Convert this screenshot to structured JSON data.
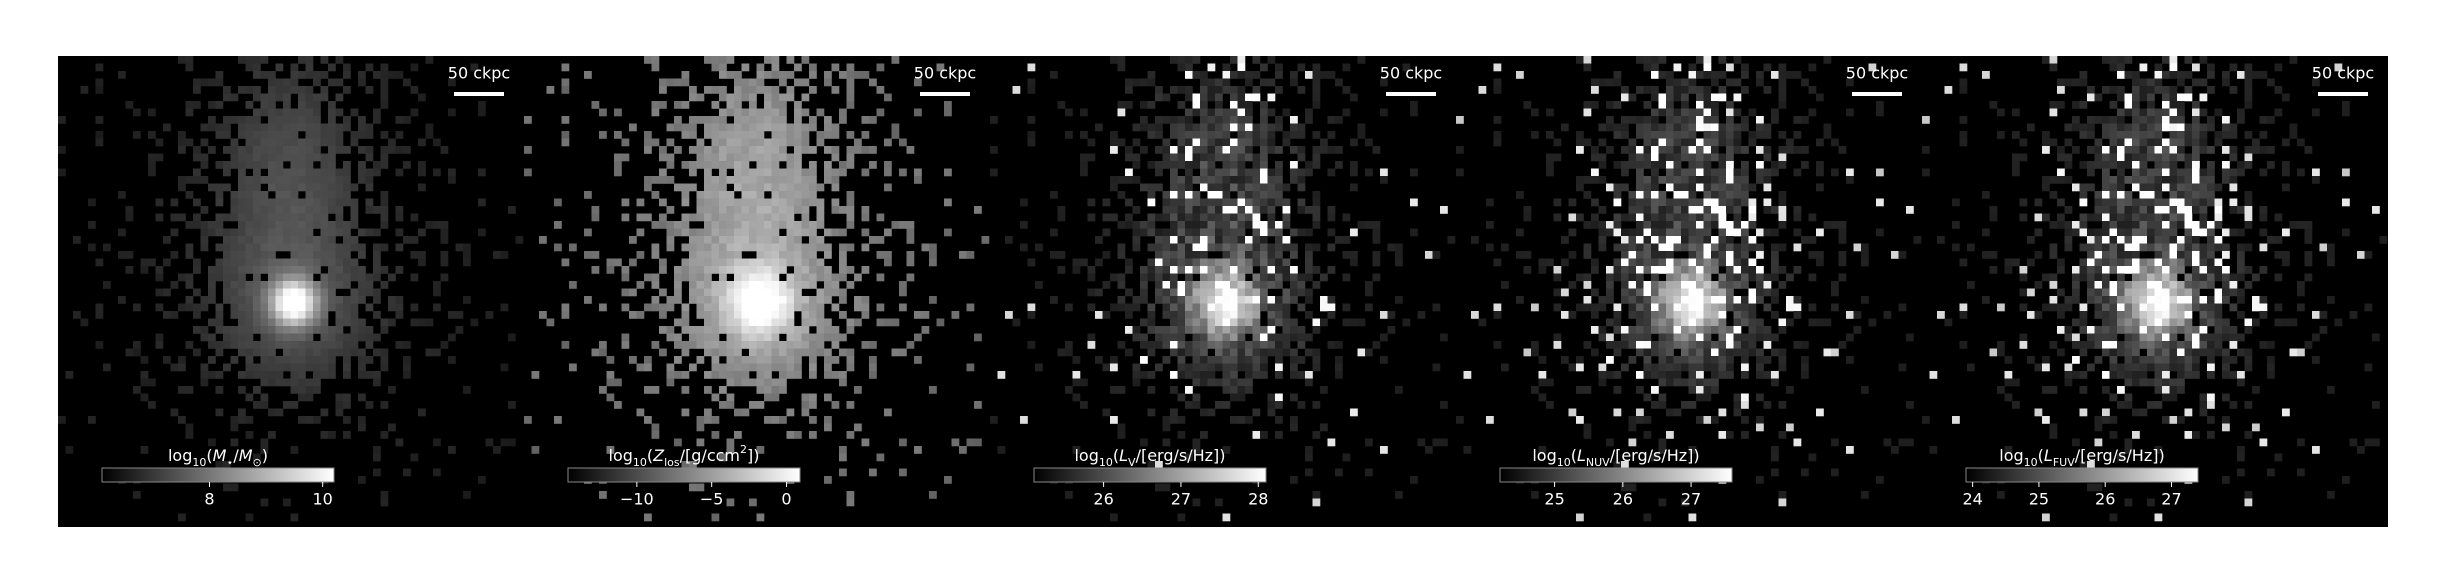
{
  "chart_data": [
    {
      "type": "image",
      "scale_bar": "50 ckpc",
      "colorbar": {
        "label": [
          {
            "text": "log"
          },
          {
            "text": "10",
            "sub": true
          },
          {
            "text": "("
          },
          {
            "text": "M",
            "italic": true
          },
          {
            "text": "⋆",
            "sub": true
          },
          {
            "text": "/"
          },
          {
            "text": "M",
            "italic": true
          },
          {
            "text": "⊙",
            "sub": true
          },
          {
            "text": ")"
          }
        ],
        "xlim": [
          6.1,
          10.2
        ],
        "xticks": [
          8,
          10
        ]
      }
    },
    {
      "type": "image",
      "scale_bar": "50 ckpc",
      "colorbar": {
        "label": [
          {
            "text": "log"
          },
          {
            "text": "10",
            "sub": true
          },
          {
            "text": "("
          },
          {
            "text": "Z",
            "italic": true
          },
          {
            "text": "los",
            "sub": true
          },
          {
            "text": "/[g/ccm"
          },
          {
            "text": "2",
            "sup": true
          },
          {
            "text": "])"
          }
        ],
        "xlim": [
          -14.6,
          0.9
        ],
        "xticks": [
          {
            "value": -10,
            "label": "−10"
          },
          {
            "value": -5,
            "label": "−5"
          },
          0
        ]
      }
    },
    {
      "type": "image",
      "scale_bar": "50 ckpc",
      "colorbar": {
        "label": [
          {
            "text": "log"
          },
          {
            "text": "10",
            "sub": true
          },
          {
            "text": "("
          },
          {
            "text": "L",
            "italic": true
          },
          {
            "text": "V",
            "sub": true
          },
          {
            "text": "/[erg/s/Hz])"
          }
        ],
        "xlim": [
          25.1,
          28.1
        ],
        "xticks": [
          26,
          27,
          28
        ]
      }
    },
    {
      "type": "image",
      "scale_bar": "50 ckpc",
      "colorbar": {
        "label": [
          {
            "text": "log"
          },
          {
            "text": "10",
            "sub": true
          },
          {
            "text": "("
          },
          {
            "text": "L",
            "italic": true
          },
          {
            "text": "NUV",
            "sub": true
          },
          {
            "text": "/[erg/s/Hz])"
          }
        ],
        "xlim": [
          24.2,
          27.6
        ],
        "xticks": [
          25,
          26,
          27
        ]
      }
    },
    {
      "type": "image",
      "scale_bar": "50 ckpc",
      "colorbar": {
        "label": [
          {
            "text": "log"
          },
          {
            "text": "10",
            "sub": true
          },
          {
            "text": "("
          },
          {
            "text": "L",
            "italic": true
          },
          {
            "text": "FUV",
            "sub": true
          },
          {
            "text": "/[erg/s/Hz])"
          }
        ],
        "xlim": [
          23.9,
          27.4
        ],
        "xticks": [
          24,
          25,
          26,
          27
        ]
      }
    }
  ]
}
